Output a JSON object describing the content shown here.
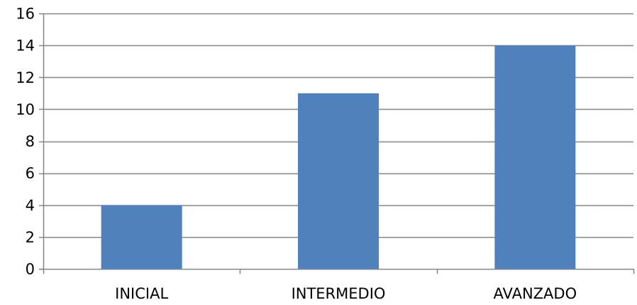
{
  "chart_data": {
    "type": "bar",
    "categories": [
      "INICIAL",
      "INTERMEDIO",
      "AVANZADO"
    ],
    "values": [
      4,
      11,
      14
    ],
    "title": "",
    "xlabel": "",
    "ylabel": "",
    "ylim": [
      0,
      16
    ],
    "y_ticks": [
      0,
      2,
      4,
      6,
      8,
      10,
      12,
      14,
      16
    ],
    "grid": true,
    "legend": "none",
    "colors": {
      "bar": "#4f81bd",
      "grid": "#868686",
      "axis": "#868686",
      "text": "#000000"
    }
  }
}
